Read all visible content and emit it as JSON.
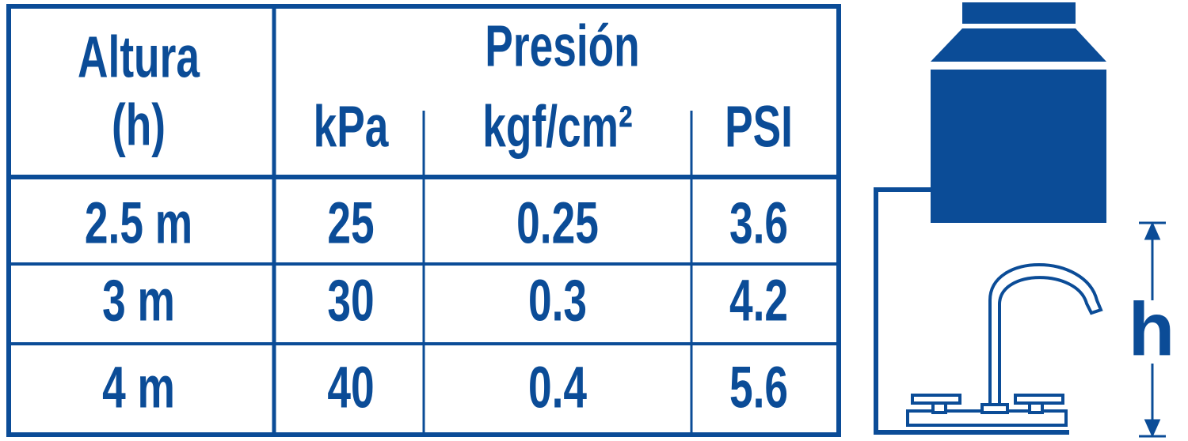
{
  "table": {
    "headers": {
      "height": "Altura",
      "height_symbol": "(h)",
      "pressure": "Presión",
      "units": [
        "kPa",
        "kgf/cm²",
        "PSI"
      ]
    },
    "rows": [
      [
        "2.5 m",
        "25",
        "0.25",
        "3.6"
      ],
      [
        "3 m",
        "30",
        "0.3",
        "4.2"
      ],
      [
        "4 m",
        "40",
        "0.4",
        "5.6"
      ]
    ]
  },
  "diagram": {
    "label": "h"
  }
}
